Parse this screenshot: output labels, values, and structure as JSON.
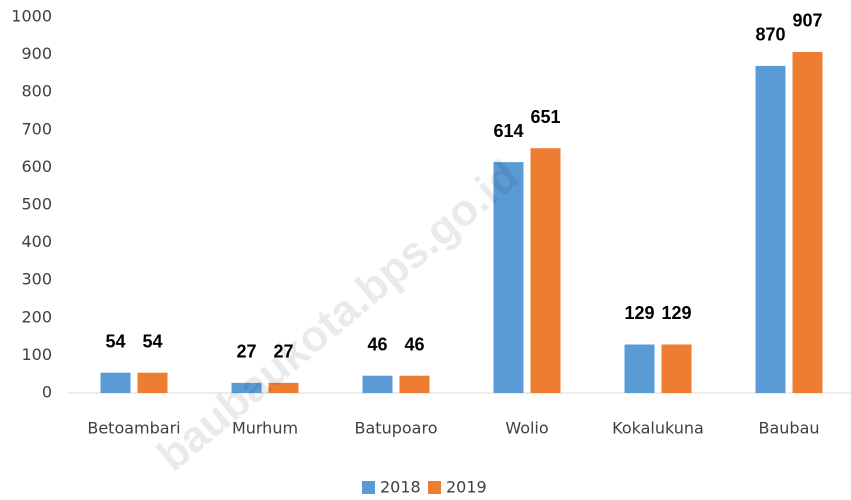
{
  "chart_data": {
    "type": "bar",
    "categories": [
      "Betoambari",
      "Murhum",
      "Batupoaro",
      "Wolio",
      "Kokalukuna",
      "Baubau"
    ],
    "series": [
      {
        "name": "2018",
        "color": "#5b9bd5",
        "values": [
          54,
          27,
          46,
          614,
          129,
          870
        ]
      },
      {
        "name": "2019",
        "color": "#ed7d31",
        "values": [
          54,
          27,
          46,
          651,
          129,
          907
        ]
      }
    ],
    "ylim": [
      0,
      1000
    ],
    "yticks": [
      0,
      100,
      200,
      300,
      400,
      500,
      600,
      700,
      800,
      900,
      1000
    ],
    "grid": false,
    "legend": "bottom",
    "watermark": "baubaukota.bps.go.id"
  }
}
